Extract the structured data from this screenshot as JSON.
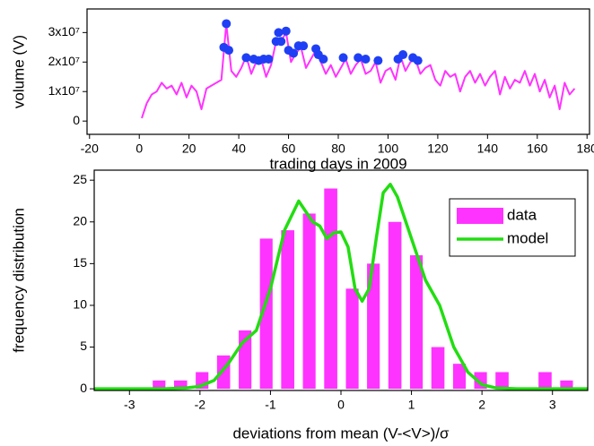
{
  "chart_data": [
    {
      "type": "line",
      "xlabel": "trading days in 2009",
      "ylabel": "volume (V)",
      "x": [
        1,
        3,
        5,
        7,
        9,
        11,
        13,
        15,
        17,
        19,
        21,
        23,
        25,
        27,
        29,
        31,
        33,
        35,
        37,
        39,
        41,
        43,
        45,
        47,
        49,
        51,
        53,
        55,
        57,
        59,
        61,
        63,
        65,
        67,
        69,
        71,
        73,
        75,
        77,
        79,
        81,
        83,
        85,
        87,
        89,
        91,
        93,
        95,
        97,
        99,
        101,
        103,
        105,
        107,
        109,
        111,
        113,
        115,
        117,
        119,
        121,
        123,
        125,
        127,
        129,
        131,
        133,
        135,
        137,
        139,
        141,
        143,
        145,
        147,
        149,
        151,
        153,
        155,
        157,
        159,
        161,
        163,
        165,
        167,
        169,
        171,
        173,
        175
      ],
      "series": [
        {
          "color": "#ff33ff",
          "values": [
            1000000,
            6000000,
            9000000,
            10000000,
            13000000,
            11000000,
            12000000,
            9000000,
            13000000,
            8000000,
            12000000,
            10000000,
            4000000,
            11000000,
            12000000,
            13000000,
            14000000,
            33000000,
            17000000,
            15000000,
            18000000,
            22000000,
            16000000,
            20000000,
            21000000,
            15000000,
            19000000,
            27000000,
            27000000,
            30000000,
            20000000,
            23000000,
            25000000,
            18000000,
            21000000,
            24000000,
            20000000,
            16000000,
            19000000,
            15000000,
            18000000,
            21000000,
            16000000,
            19000000,
            21000000,
            16000000,
            17000000,
            20000000,
            13000000,
            17000000,
            18000000,
            14000000,
            22000000,
            17000000,
            20000000,
            21000000,
            16000000,
            18000000,
            19000000,
            14000000,
            12000000,
            17000000,
            15000000,
            16000000,
            10000000,
            15000000,
            17000000,
            13000000,
            16000000,
            12000000,
            15000000,
            17000000,
            9000000,
            15000000,
            11000000,
            14000000,
            13000000,
            17000000,
            12000000,
            16000000,
            10000000,
            14000000,
            8000000,
            12000000,
            4000000,
            13000000,
            9000000,
            11000000
          ]
        },
        {
          "color": "#1f3ff5",
          "marker": "circle",
          "x": [
            34,
            35,
            36,
            43,
            46,
            48,
            50,
            52,
            55,
            56,
            57,
            59,
            60,
            62,
            64,
            66,
            71,
            72,
            74,
            82,
            88,
            91,
            96,
            104,
            106,
            110,
            112
          ],
          "values": [
            25000000,
            33000000,
            24000000,
            21500000,
            21000000,
            20500000,
            21000000,
            21000000,
            27000000,
            30000000,
            27000000,
            30500000,
            24000000,
            23000000,
            25500000,
            25500000,
            24500000,
            22500000,
            21000000,
            21500000,
            21500000,
            21000000,
            20500000,
            21000000,
            22500000,
            21500000,
            20500000
          ]
        }
      ],
      "xlim": [
        -21,
        181
      ],
      "xticks": [
        -20,
        0,
        20,
        40,
        60,
        80,
        100,
        120,
        140,
        160,
        180
      ],
      "ylim": [
        -4500000,
        38000000
      ],
      "yticks": [
        0,
        {
          "value": 10000000,
          "label": "1x10⁷"
        },
        {
          "value": 20000000,
          "label": "2x10⁷"
        },
        {
          "value": 30000000,
          "label": "3x10⁷"
        }
      ]
    },
    {
      "type": "histogram",
      "xlabel": "deviations from mean (V-<V>)/σ",
      "ylabel": "frequency distribution",
      "bins": [
        -2.73,
        -2.43,
        -2.12,
        -1.82,
        -1.51,
        -1.21,
        -0.91,
        -0.6,
        -0.3,
        0.01,
        0.31,
        0.61,
        0.92,
        1.22,
        1.53,
        1.83,
        2.13,
        2.44,
        2.74,
        3.05,
        3.35
      ],
      "series": [
        {
          "name": "data",
          "color": "#ff33ff",
          "values": [
            1,
            1,
            2,
            4,
            7,
            18,
            19,
            21,
            24,
            12,
            15,
            20,
            16,
            5,
            3,
            2,
            2,
            0,
            2,
            1
          ]
        },
        {
          "name": "model",
          "color": "#22dd11",
          "x": [
            -3.5,
            -2.5,
            -2.2,
            -2.0,
            -1.8,
            -1.6,
            -1.4,
            -1.2,
            -1.0,
            -0.8,
            -0.6,
            -0.4,
            -0.3,
            -0.2,
            -0.1,
            0,
            0.1,
            0.2,
            0.3,
            0.4,
            0.5,
            0.6,
            0.7,
            0.8,
            1.0,
            1.2,
            1.4,
            1.6,
            1.8,
            2.0,
            2.2,
            2.5,
            3.5
          ],
          "values": [
            0,
            0,
            0.1,
            0.3,
            1,
            3,
            5.5,
            7,
            12,
            19,
            22.5,
            20,
            19.5,
            18,
            18.7,
            18.8,
            17,
            12,
            10.5,
            12,
            18,
            23.5,
            24.5,
            23,
            18,
            13,
            10,
            5,
            2,
            0.5,
            0.1,
            0,
            0
          ]
        }
      ],
      "xlim": [
        -3.5,
        3.5
      ],
      "xticks": [
        -3,
        -2,
        -1,
        0,
        1,
        2,
        3
      ],
      "ylim": [
        -0.2,
        26.2
      ],
      "yticks": [
        0,
        5,
        10,
        15,
        20,
        25
      ],
      "legend": "upper right"
    }
  ]
}
